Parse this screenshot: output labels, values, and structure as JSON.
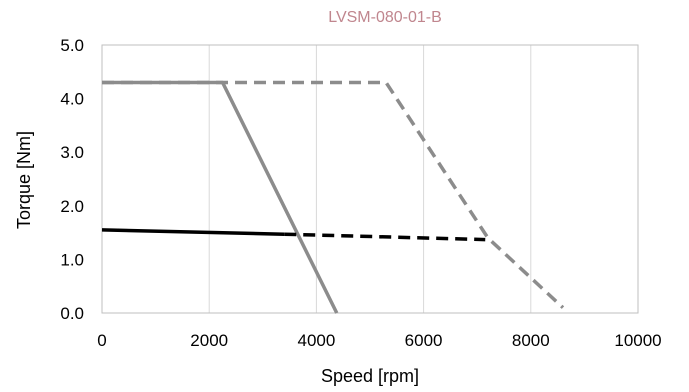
{
  "chart_data": {
    "type": "line",
    "title": "LVSM-080-01-B",
    "xlabel": "Speed [rpm]",
    "ylabel": "Torque [Nm]",
    "xlim": [
      0,
      10000
    ],
    "ylim": [
      0,
      5
    ],
    "x_ticks": [
      0,
      2000,
      4000,
      6000,
      8000,
      10000
    ],
    "y_ticks": [
      0.0,
      1.0,
      2.0,
      3.0,
      4.0,
      5.0
    ],
    "x_tick_labels": [
      "0",
      "2000",
      "4000",
      "6000",
      "8000",
      "10000"
    ],
    "y_tick_labels": [
      "0.0",
      "1.0",
      "2.0",
      "3.0",
      "4.0",
      "5.0"
    ],
    "grid": "vertical",
    "legend": "none",
    "series": [
      {
        "color": "#8c8c8c",
        "style": "solid",
        "points": [
          [
            0,
            4.3
          ],
          [
            2250,
            4.3
          ],
          [
            4380,
            0.0
          ]
        ]
      },
      {
        "color": "#000000",
        "style": "solid",
        "points": [
          [
            0,
            1.55
          ],
          [
            3400,
            1.47
          ]
        ]
      },
      {
        "color": "#8c8c8c",
        "style": "dashed",
        "points": [
          [
            0,
            4.3
          ],
          [
            5300,
            4.3
          ],
          [
            7200,
            1.4
          ],
          [
            8600,
            0.1
          ]
        ]
      },
      {
        "color": "#000000",
        "style": "dashed",
        "points": [
          [
            3400,
            1.47
          ],
          [
            7150,
            1.37
          ]
        ]
      }
    ]
  },
  "colors": {
    "title": "#c0868e",
    "grid": "#d9d9d9",
    "axis": "#bfbfbf"
  }
}
